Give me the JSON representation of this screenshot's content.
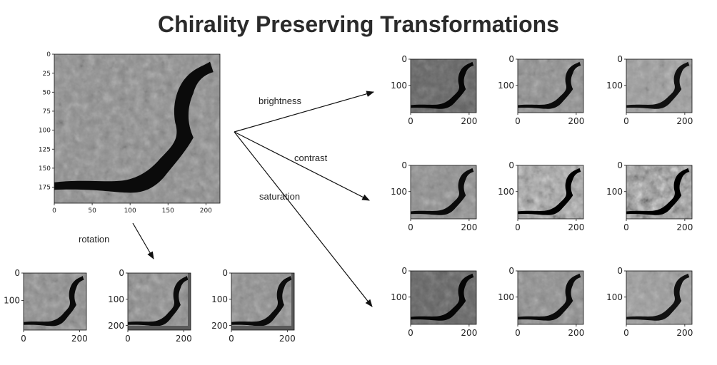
{
  "title": "Chirality Preserving Transformations",
  "arrows": {
    "brightness": "brightness",
    "contrast": "contrast",
    "saturation": "saturation",
    "rotation": "rotation"
  },
  "main_plot": {
    "x_ticks": [
      "0",
      "50",
      "100",
      "150",
      "200"
    ],
    "y_ticks": [
      "0",
      "25",
      "50",
      "75",
      "100",
      "125",
      "150",
      "175"
    ]
  },
  "small_plot": {
    "x_ticks": [
      "0",
      "200"
    ],
    "y_ticks": [
      "0",
      "100"
    ]
  },
  "rotation_plot": {
    "x_ticks": [
      "0",
      "200"
    ],
    "y_ticks": [
      "0",
      "100",
      "200"
    ]
  },
  "grid": {
    "rows": [
      "brightness",
      "contrast",
      "saturation"
    ],
    "columns": 3
  }
}
